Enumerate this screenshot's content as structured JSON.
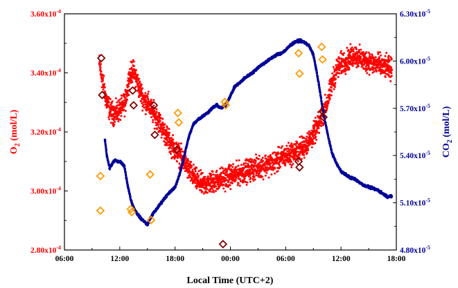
{
  "chart_data": {
    "type": "scatter",
    "xlabel": "Local Time (UTC+2)",
    "x_ticks": [
      "06:00",
      "12:00",
      "18:00",
      "00:00",
      "06:00",
      "12:00",
      "18:00"
    ],
    "x_range_hours": [
      6,
      42
    ],
    "y_left": {
      "label_base": "O",
      "label_sub": "2",
      "label_rest": " (mol/L)",
      "range": [
        0.00028,
        0.00036
      ],
      "ticks": [
        0.00028,
        0.0003,
        0.00032,
        0.00034,
        0.00036
      ],
      "tick_labels": [
        "2.80x10",
        "3.00x10",
        "3.20x10",
        "3.40x10",
        "3.60x10"
      ],
      "tick_exp": "-4",
      "color": "#ff0000"
    },
    "y_right": {
      "label_base": "CO",
      "label_sub": "2",
      "label_rest": " (mol/L)",
      "range": [
        4.8e-05,
        6.3e-05
      ],
      "ticks": [
        4.8e-05,
        5.1e-05,
        5.4e-05,
        5.7e-05,
        6e-05,
        6.3e-05
      ],
      "tick_labels": [
        "4.80x10",
        "5.10x10",
        "5.40x10",
        "5.70x10",
        "6.00x10",
        "6.30x10"
      ],
      "tick_exp": "-5",
      "color": "#000099"
    },
    "series": [
      {
        "axis": "left",
        "color": "#ff0000",
        "marker": "dot",
        "x": [
          9.8,
          10.2,
          10.6,
          11.0,
          11.4,
          11.8,
          12.2,
          12.6,
          13.0,
          13.4,
          13.8,
          14.2,
          14.6,
          15.0,
          15.5,
          16.0,
          16.5,
          17.0,
          17.5,
          18.0,
          18.5,
          19.0,
          19.5,
          20.0,
          20.5,
          21.0,
          21.5,
          22.0,
          23.0,
          24.0,
          25.0,
          26.0,
          27.0,
          28.0,
          29.0,
          30.0,
          31.0,
          32.0,
          33.0,
          33.5,
          34.0,
          34.5,
          35.0,
          35.5,
          36.0,
          36.5,
          37.0,
          37.5,
          38.0,
          38.5,
          39.0,
          39.5,
          40.0,
          40.5,
          41.0,
          41.5
        ],
        "y": [
          0.000343,
          0.000336,
          0.00033,
          0.000327,
          0.000326,
          0.000327,
          0.000328,
          0.00033,
          0.000338,
          0.000341,
          0.000338,
          0.000334,
          0.000331,
          0.00033,
          0.000327,
          0.000325,
          0.000322,
          0.000319,
          0.000316,
          0.000314,
          0.000312,
          0.00031,
          0.000307,
          0.000305,
          0.000303,
          0.000302,
          0.0003025,
          0.000303,
          0.000304,
          0.000305,
          0.000306,
          0.000307,
          0.000308,
          0.000309,
          0.00031,
          0.000312,
          0.000313,
          0.000315,
          0.000319,
          0.000322,
          0.000326,
          0.00033,
          0.000336,
          0.000341,
          0.000343,
          0.000344,
          0.000345,
          0.000346,
          0.000345,
          0.000344,
          0.000344,
          0.000343,
          0.000343,
          0.000342,
          0.000342,
          0.000341
        ]
      },
      {
        "axis": "right",
        "color": "#000099",
        "marker": "dot",
        "x": [
          10.4,
          10.6,
          10.9,
          11.2,
          11.5,
          11.8,
          12.1,
          12.5,
          12.9,
          13.2,
          13.5,
          13.9,
          14.3,
          14.7,
          15.0,
          15.3,
          15.6,
          16.0,
          16.5,
          17.0,
          17.5,
          18.0,
          18.5,
          19.0,
          19.5,
          20.0,
          20.5,
          21.0,
          21.5,
          22.0,
          22.5,
          23.0,
          23.5,
          24.0,
          24.5,
          25.0,
          25.5,
          26.0,
          26.5,
          27.0,
          27.5,
          28.0,
          28.5,
          29.0,
          29.5,
          30.0,
          30.5,
          31.0,
          31.5,
          32.0,
          32.5,
          33.0,
          33.3,
          33.6,
          34.0,
          34.5,
          35.0,
          35.5,
          36.0,
          36.5,
          37.0,
          37.5,
          38.0,
          38.5,
          39.0,
          39.5,
          40.0,
          40.5,
          41.0,
          41.5
        ],
        "y": [
          5.5e-05,
          5.4e-05,
          5.32e-05,
          5.35e-05,
          5.37e-05,
          5.36e-05,
          5.36e-05,
          5.33e-05,
          5.2e-05,
          5.12e-05,
          5.07e-05,
          5.03e-05,
          5e-05,
          4.98e-05,
          4.96e-05,
          5e-05,
          5.03e-05,
          5.06e-05,
          5.1e-05,
          5.14e-05,
          5.17e-05,
          5.2e-05,
          5.28e-05,
          5.4e-05,
          5.52e-05,
          5.6e-05,
          5.63e-05,
          5.65e-05,
          5.67e-05,
          5.7e-05,
          5.72e-05,
          5.7e-05,
          5.72e-05,
          5.78e-05,
          5.84e-05,
          5.86e-05,
          5.89e-05,
          5.91e-05,
          5.93e-05,
          5.96e-05,
          5.98e-05,
          6e-05,
          6.02e-05,
          6.04e-05,
          6.05e-05,
          6.07e-05,
          6.1e-05,
          6.12e-05,
          6.13e-05,
          6.12e-05,
          6.1e-05,
          6.04e-05,
          5.95e-05,
          5.85e-05,
          5.7e-05,
          5.55e-05,
          5.42e-05,
          5.35e-05,
          5.3e-05,
          5.28e-05,
          5.26e-05,
          5.25e-05,
          5.23e-05,
          5.21e-05,
          5.2e-05,
          5.19e-05,
          5.18e-05,
          5.16e-05,
          5.14e-05,
          5.14e-05
        ]
      },
      {
        "axis": "right",
        "color": "#ff9900",
        "marker": "diamond-open",
        "x": [
          9.9,
          9.9,
          13.2,
          13.3,
          15.3,
          15.4,
          18.3,
          18.4,
          23.4,
          23.5,
          31.4,
          31.5,
          33.9,
          34.0
        ],
        "y": [
          5.27e-05,
          5.05e-05,
          5.06e-05,
          5.04e-05,
          5.28e-05,
          4.99e-05,
          5.67e-05,
          5.61e-05,
          5.74e-05,
          5.72e-05,
          6.05e-05,
          5.92e-05,
          6.09e-05,
          6.01e-05
        ]
      },
      {
        "axis": "left",
        "color": "#800000",
        "marker": "diamond-open",
        "x": [
          10.0,
          10.1,
          13.4,
          13.5,
          15.7,
          15.8,
          18.2,
          23.2,
          31.4,
          31.5,
          34.0,
          34.1
        ],
        "y": [
          0.000345,
          0.0003325,
          0.000334,
          0.000329,
          0.000329,
          0.000319,
          0.000314,
          0.000282,
          0.00031,
          0.000308,
          0.000327,
          0.000325
        ]
      }
    ]
  }
}
